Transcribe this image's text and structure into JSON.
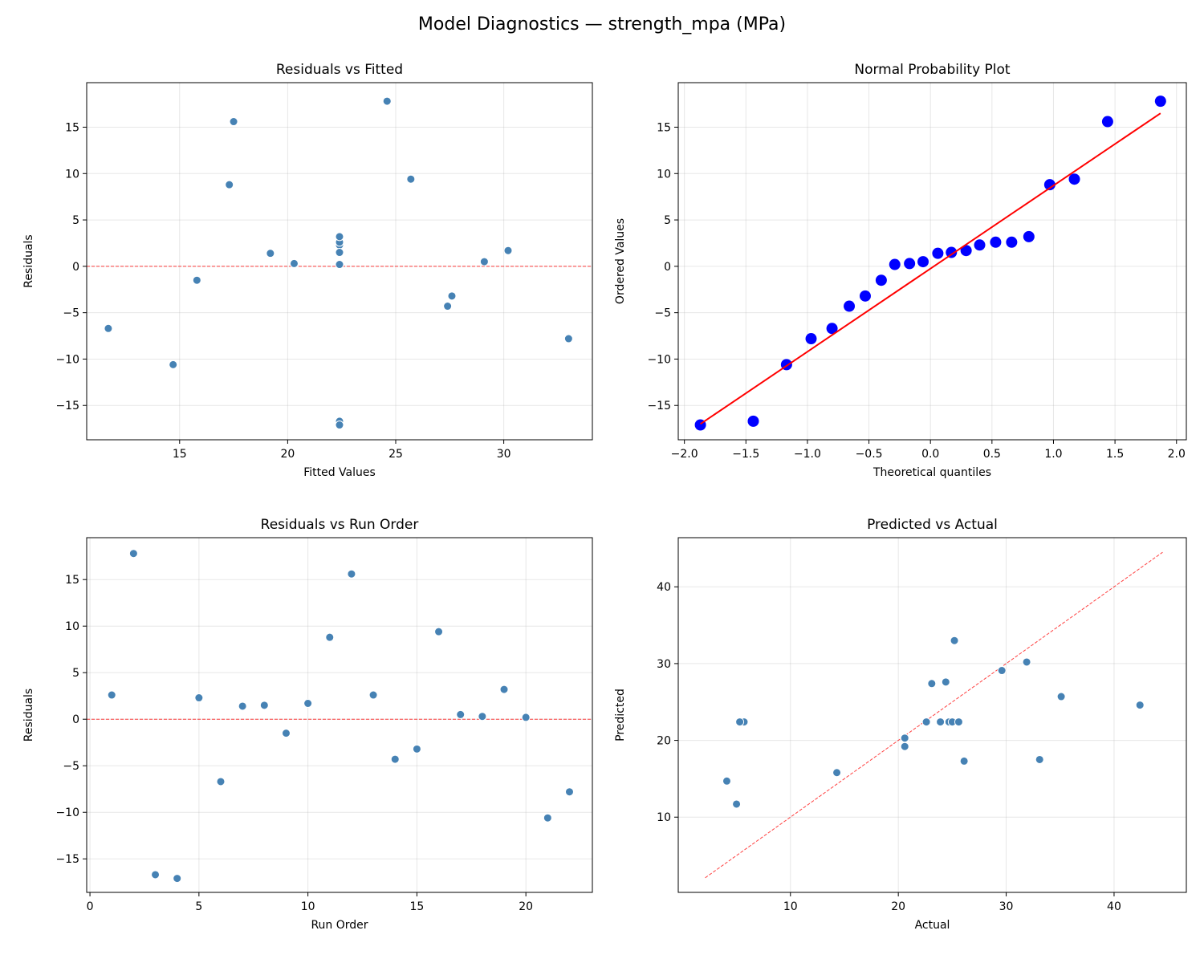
{
  "title": "Model Diagnostics — strength_mpa (MPa)",
  "chart_data": [
    {
      "type": "scatter",
      "title": "Residuals vs Fitted",
      "xlabel": "Fitted Values",
      "ylabel": "Residuals",
      "xlim": [
        10.7,
        34.1
      ],
      "ylim": [
        -18.7,
        19.8
      ],
      "xticks": [
        15,
        20,
        25,
        30
      ],
      "yticks": [
        -15,
        -10,
        -5,
        0,
        5,
        10,
        15
      ],
      "grid": true,
      "point_color": "#4682b4",
      "x": [
        22.4,
        24.6,
        22.4,
        22.4,
        22.4,
        11.7,
        19.2,
        22.4,
        15.8,
        30.2,
        17.3,
        17.5,
        22.4,
        27.4,
        27.6,
        25.7,
        29.1,
        20.3,
        22.4,
        22.4,
        14.7,
        33.0
      ],
      "y": [
        2.6,
        17.8,
        -16.7,
        -17.1,
        2.3,
        -6.7,
        1.4,
        1.5,
        -1.5,
        1.7,
        8.8,
        15.6,
        2.6,
        -4.3,
        -3.2,
        9.4,
        0.5,
        0.3,
        3.2,
        0.2,
        -10.6,
        -7.8
      ],
      "reference_line": {
        "y": 0,
        "color": "#ff0000",
        "style": "dashed"
      }
    },
    {
      "type": "scatter",
      "title": "Normal Probability Plot",
      "xlabel": "Theoretical quantiles",
      "ylabel": "Ordered Values",
      "xlim": [
        -2.05,
        2.08
      ],
      "ylim": [
        -18.7,
        19.8
      ],
      "xticks": [
        -2.0,
        -1.5,
        -1.0,
        -0.5,
        0.0,
        0.5,
        1.0,
        1.5,
        2.0
      ],
      "yticks": [
        -15,
        -10,
        -5,
        0,
        5,
        10,
        15
      ],
      "grid": true,
      "point_color": "#0000ff",
      "x": [
        -1.87,
        -1.44,
        -1.17,
        -0.97,
        -0.8,
        -0.66,
        -0.53,
        -0.4,
        -0.29,
        -0.17,
        -0.06,
        0.06,
        0.17,
        0.29,
        0.4,
        0.53,
        0.66,
        0.8,
        0.97,
        1.17,
        1.44,
        1.87
      ],
      "y": [
        -17.1,
        -16.7,
        -10.6,
        -7.8,
        -6.7,
        -4.3,
        -3.2,
        -1.5,
        0.2,
        0.3,
        0.5,
        1.4,
        1.5,
        1.7,
        2.3,
        2.6,
        2.6,
        3.2,
        8.8,
        9.4,
        15.6,
        17.8
      ],
      "fit_line": {
        "x": [
          -1.87,
          1.87
        ],
        "y": [
          -17.0,
          16.5
        ],
        "color": "#ff0000",
        "style": "solid"
      }
    },
    {
      "type": "scatter",
      "title": "Residuals vs Run Order",
      "xlabel": "Run Order",
      "ylabel": "Residuals",
      "xlim": [
        -0.15,
        23.05
      ],
      "ylim": [
        -18.6,
        19.5
      ],
      "xticks": [
        0,
        5,
        10,
        15,
        20
      ],
      "yticks": [
        -15,
        -10,
        -5,
        0,
        5,
        10,
        15
      ],
      "grid": true,
      "point_color": "#4682b4",
      "x": [
        1,
        2,
        3,
        4,
        5,
        6,
        7,
        8,
        9,
        10,
        11,
        12,
        13,
        14,
        15,
        16,
        17,
        18,
        19,
        20,
        21,
        22
      ],
      "y": [
        2.6,
        17.8,
        -16.7,
        -17.1,
        2.3,
        -6.7,
        1.4,
        1.5,
        -1.5,
        1.7,
        8.8,
        15.6,
        2.6,
        -4.3,
        -3.2,
        9.4,
        0.5,
        0.3,
        3.2,
        0.2,
        -10.6,
        -7.8
      ],
      "reference_line": {
        "y": 0,
        "color": "#ff0000",
        "style": "dashed"
      }
    },
    {
      "type": "scatter",
      "title": "Predicted vs Actual",
      "xlabel": "Actual",
      "ylabel": "Predicted",
      "xlim": [
        -0.4,
        46.7
      ],
      "ylim": [
        0.2,
        46.4
      ],
      "xticks": [
        10,
        20,
        30,
        40
      ],
      "yticks": [
        10,
        20,
        30,
        40
      ],
      "grid": true,
      "point_color": "#4682b4",
      "x": [
        25.0,
        42.4,
        5.7,
        5.3,
        24.7,
        5.0,
        20.6,
        23.9,
        14.3,
        31.9,
        26.1,
        33.1,
        25.0,
        23.1,
        24.4,
        35.1,
        29.6,
        20.6,
        25.6,
        22.6,
        4.1,
        25.2
      ],
      "y": [
        22.4,
        24.6,
        22.4,
        22.4,
        22.4,
        11.7,
        19.2,
        22.4,
        15.8,
        30.2,
        17.3,
        17.5,
        22.4,
        27.4,
        27.6,
        25.7,
        29.1,
        20.3,
        22.4,
        22.4,
        14.7,
        33.0
      ],
      "fit_line": {
        "x": [
          2.1,
          44.5
        ],
        "y": [
          2.1,
          44.5
        ],
        "color": "#ff0000",
        "style": "dashed"
      }
    }
  ]
}
